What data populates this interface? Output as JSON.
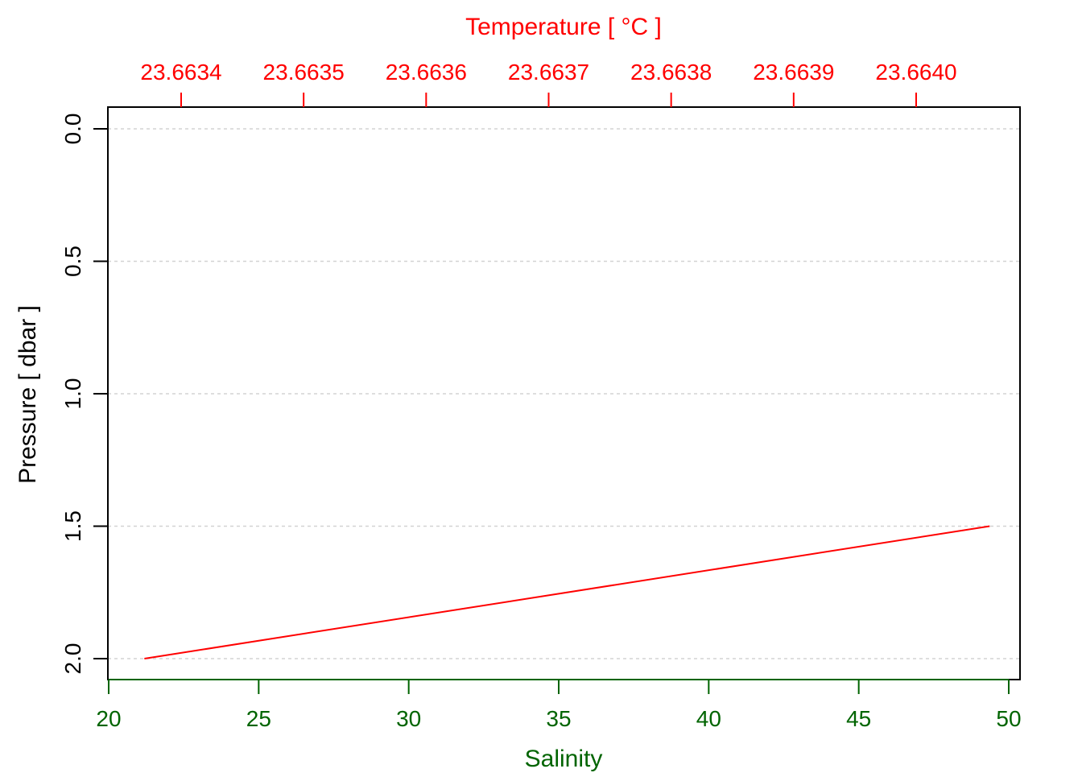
{
  "chart_data": {
    "type": "line",
    "title": "",
    "top_axis": {
      "label": "Temperature [ °C ]",
      "color": "#ff0000",
      "ticks": [
        23.6634,
        23.6635,
        23.6636,
        23.6637,
        23.6638,
        23.6639,
        23.664
      ],
      "tick_labels": [
        "23.6634",
        "23.6635",
        "23.6636",
        "23.6637",
        "23.6638",
        "23.6639",
        "23.6640"
      ]
    },
    "bottom_axis": {
      "label": "Salinity",
      "color": "#006400",
      "ticks": [
        20,
        25,
        30,
        35,
        40,
        45,
        50
      ],
      "tick_labels": [
        "20",
        "25",
        "30",
        "35",
        "40",
        "45",
        "50"
      ],
      "range": [
        19.97,
        50.4
      ]
    },
    "left_axis": {
      "label": "Pressure [ dbar ]",
      "color": "#000000",
      "ticks": [
        0.0,
        0.5,
        1.0,
        1.5,
        2.0
      ],
      "tick_labels": [
        "0.0",
        "0.5",
        "1.0",
        "1.5",
        "2.0"
      ],
      "range": [
        -0.08,
        2.08
      ],
      "reversed": true
    },
    "grid": "horizontal-dotted",
    "grid_color": "#d3d3d3",
    "series": [
      {
        "color": "#ff0000",
        "x_axis": "top",
        "points": [
          {
            "temperature": 23.66337,
            "pressure": 2.0
          },
          {
            "temperature": 23.66406,
            "pressure": 1.5
          }
        ]
      }
    ]
  }
}
